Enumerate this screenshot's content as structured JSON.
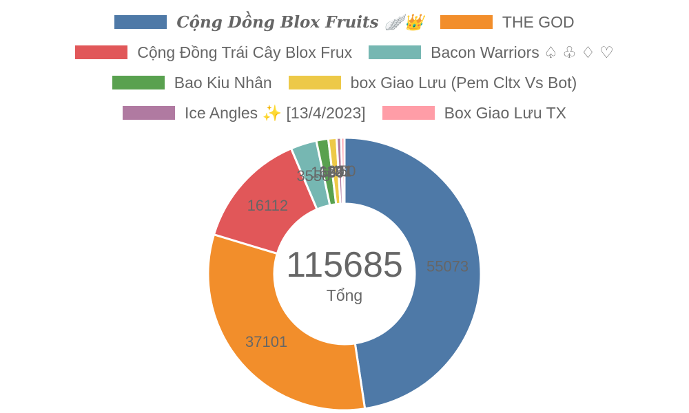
{
  "chart_data": {
    "type": "pie",
    "variant": "doughnut",
    "categories": [
      "𝑪𝒐̣̂𝒏𝒈 𝑫𝒐̂̀𝒏𝒈 𝑩𝒍𝒐𝒙 𝑭𝒓𝒖𝒊𝒕𝒔 🪽👑",
      "THE GOD",
      "Cộng Đồng Trái Cây Blox Frux",
      "Bacon Warriors ♤ ♧ ♢ ♡",
      "Bao Kiu Nhân",
      "box Giao Lưu (Pem Cltx Vs Bot)",
      "Ice Angles ✨ [13/4/2023]",
      "Box Giao Lưu TX"
    ],
    "values": [
      55073,
      37101,
      16112,
      3558,
      1639,
      1131,
      621,
      450
    ],
    "colors": [
      "#4e79a7",
      "#f28e2b",
      "#e15759",
      "#76b7b2",
      "#59a14f",
      "#edc948",
      "#b07aa1",
      "#ff9da7"
    ],
    "center_total": "115685",
    "center_label": "Tổng",
    "legend_position": "top"
  }
}
